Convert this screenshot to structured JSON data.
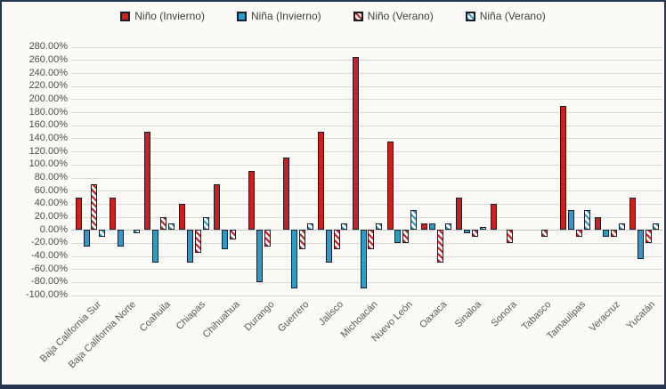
{
  "chart_data": {
    "type": "bar",
    "title": "",
    "xlabel": "",
    "ylabel": "",
    "ylim": [
      -100,
      280
    ],
    "ytick_step": 20,
    "ytick_format": "0.00%",
    "grid": true,
    "legend_position": "top",
    "categories": [
      "Baja California Sur",
      "Baja California Norte",
      "Coahuila",
      "Chiapas",
      "Chihuahua",
      "Durango",
      "Guerrero",
      "Jalisco",
      "Michoacán",
      "Nuevo León",
      "Oaxaca",
      "Sinaloa",
      "Sonora",
      "Tabasco",
      "Tamaulipas",
      "Veracruz",
      "Yucatán"
    ],
    "series": [
      {
        "name": "Niño (Invierno)",
        "style": "solid",
        "color": "#cc1f1f",
        "values": [
          50,
          50,
          150,
          40,
          70,
          90,
          110,
          150,
          265,
          135,
          10,
          50,
          40,
          0,
          190,
          20,
          50
        ]
      },
      {
        "name": "Niña (Invierno)",
        "style": "solid",
        "color": "#2b9cc9",
        "values": [
          -25,
          -25,
          -50,
          -50,
          -30,
          -80,
          -90,
          -50,
          -90,
          -20,
          10,
          -5,
          0,
          0,
          30,
          -10,
          -45
        ]
      },
      {
        "name": "Niño (Verano)",
        "style": "hatched",
        "color": "#cc1f1f",
        "values": [
          70,
          0,
          20,
          -35,
          -15,
          -25,
          -30,
          -30,
          -30,
          -20,
          -50,
          -10,
          -20,
          -10,
          -10,
          -10,
          -20
        ]
      },
      {
        "name": "Niña (Verano)",
        "style": "hatched",
        "color": "#2b9cc9",
        "values": [
          -10,
          -5,
          10,
          20,
          0,
          0,
          10,
          10,
          10,
          30,
          10,
          5,
          0,
          0,
          30,
          10,
          10
        ]
      }
    ]
  },
  "colors": {
    "frame_border": "#263550",
    "background": "#fbfaf7",
    "gridline": "#d9d9d9",
    "bar_border": "#1c1c28",
    "axis_text": "#4d4d4d",
    "label_text": "#595959"
  }
}
